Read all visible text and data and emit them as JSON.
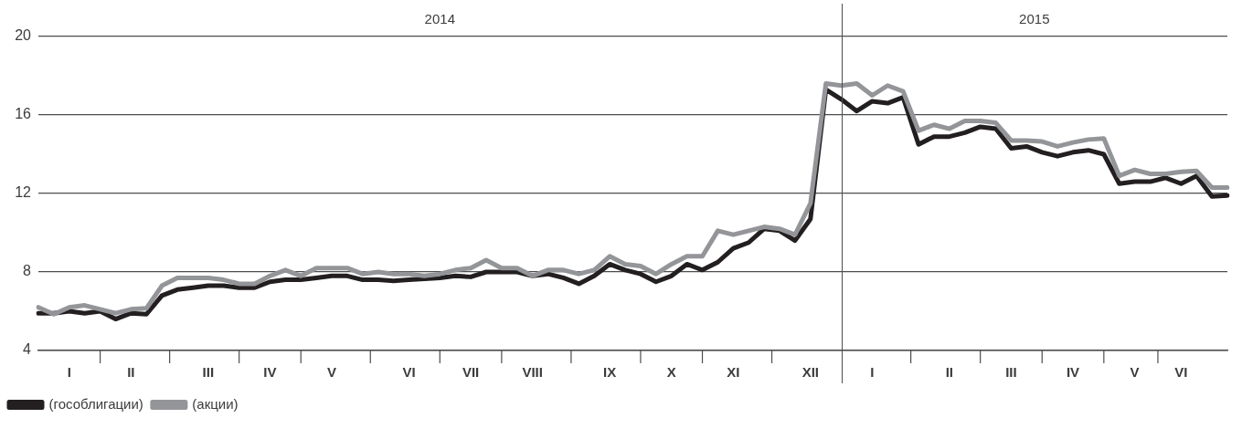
{
  "chart_data": {
    "type": "line",
    "categories": [
      null,
      null,
      "I",
      null,
      null,
      null,
      "II",
      null,
      null,
      null,
      null,
      "III",
      null,
      null,
      null,
      "IV",
      null,
      null,
      null,
      "V",
      null,
      null,
      null,
      null,
      "VI",
      null,
      null,
      null,
      "VII",
      null,
      null,
      null,
      "VIII",
      null,
      null,
      null,
      null,
      "IX",
      null,
      null,
      null,
      "X",
      null,
      null,
      null,
      "XI",
      null,
      null,
      null,
      null,
      "XII",
      null,
      null,
      null,
      "I",
      null,
      null,
      null,
      null,
      "II",
      null,
      null,
      null,
      "III",
      null,
      null,
      null,
      "IV",
      null,
      null,
      null,
      "V",
      null,
      null,
      "VI",
      null,
      null,
      null
    ],
    "annotations": [
      "2014",
      "2015"
    ],
    "ylim": [
      4,
      20
    ],
    "yticks": [
      4,
      8,
      12,
      16,
      20
    ],
    "grid": "y",
    "legend": "bottom left",
    "marker": "none",
    "line_style": "solid",
    "series": [
      {
        "name": "(гособлигации)",
        "color": "#231f20",
        "values": [
          5.9,
          5.9,
          6.0,
          5.9,
          6.0,
          5.6,
          5.9,
          5.85,
          6.8,
          7.1,
          7.2,
          7.3,
          7.3,
          7.2,
          7.2,
          7.5,
          7.6,
          7.6,
          7.7,
          7.8,
          7.8,
          7.6,
          7.6,
          7.55,
          7.6,
          7.65,
          7.7,
          7.8,
          7.75,
          8.0,
          8.0,
          8.0,
          7.8,
          7.9,
          7.7,
          7.4,
          7.8,
          8.4,
          8.1,
          7.9,
          7.5,
          7.8,
          8.4,
          8.1,
          8.5,
          9.2,
          9.5,
          10.2,
          10.1,
          9.6,
          10.7,
          17.3,
          16.8,
          16.2,
          16.7,
          16.6,
          16.9,
          14.5,
          14.9,
          14.9,
          15.1,
          15.4,
          15.3,
          14.3,
          14.4,
          14.1,
          13.9,
          14.1,
          14.2,
          14.0,
          12.5,
          12.6,
          12.6,
          12.8,
          12.5,
          12.9,
          11.85,
          11.9
        ]
      },
      {
        "name": "(акции)",
        "color": "#939598",
        "values": [
          6.2,
          5.85,
          6.2,
          6.3,
          6.1,
          5.9,
          6.1,
          6.15,
          7.3,
          7.7,
          7.7,
          7.7,
          7.6,
          7.4,
          7.4,
          7.8,
          8.1,
          7.8,
          8.2,
          8.2,
          8.2,
          7.9,
          8.0,
          7.9,
          7.9,
          7.8,
          7.9,
          8.1,
          8.2,
          8.6,
          8.2,
          8.2,
          7.8,
          8.1,
          8.1,
          7.9,
          8.1,
          8.8,
          8.4,
          8.3,
          7.9,
          8.4,
          8.8,
          8.8,
          10.1,
          9.9,
          10.1,
          10.3,
          10.2,
          9.9,
          11.5,
          17.6,
          17.5,
          17.6,
          17.0,
          17.5,
          17.2,
          15.2,
          15.5,
          15.3,
          15.7,
          15.7,
          15.6,
          14.7,
          14.7,
          14.65,
          14.4,
          14.6,
          14.75,
          14.8,
          12.9,
          13.2,
          13.0,
          13.0,
          13.1,
          13.15,
          12.3,
          12.3
        ]
      }
    ]
  }
}
